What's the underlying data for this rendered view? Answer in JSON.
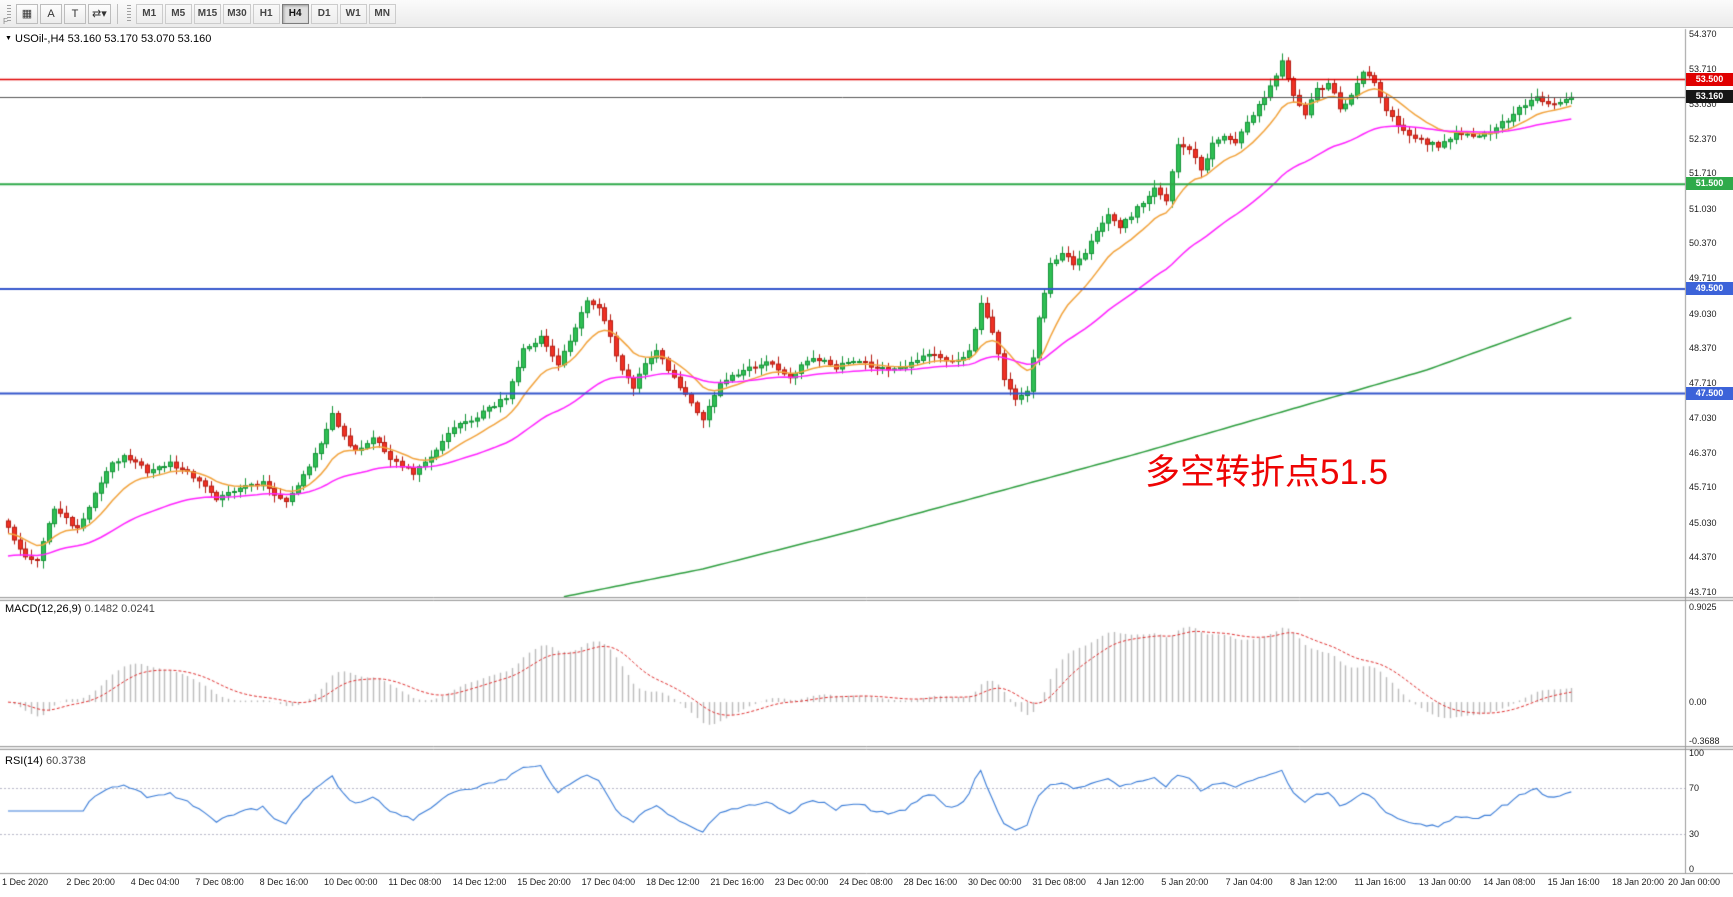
{
  "app": {
    "toolbar": {
      "f_label": "F",
      "left_buttons": [
        {
          "name": "chart-windows-icon",
          "glyph": "▦"
        },
        {
          "name": "annotate-a-button",
          "glyph": "A"
        },
        {
          "name": "text-tool-button",
          "glyph": "T"
        },
        {
          "name": "symbol-cycle-icon",
          "glyph": "⇄",
          "caret": "▾"
        }
      ],
      "timeframes": [
        "M1",
        "M5",
        "M15",
        "M30",
        "H1",
        "H4",
        "D1",
        "W1",
        "MN"
      ],
      "active_timeframe": "H4"
    },
    "symbol_header": {
      "expand_icon": "▼",
      "symbol": "USOil-,H4",
      "ohlc": "53.160 53.170 53.070 53.160"
    },
    "annotation": {
      "text": "多空转折点51.5"
    }
  },
  "chart_data": {
    "type": "candlestick",
    "symbol": "USOil",
    "timeframe": "H4",
    "ohlc_display": {
      "open": "53.160",
      "high": "53.170",
      "low": "53.070",
      "close": "53.160"
    },
    "price_range": [
      43.71,
      54.37
    ],
    "price_axis_labels": [
      "54.370",
      "53.710",
      "53.030",
      "52.370",
      "51.710",
      "51.030",
      "50.370",
      "49.710",
      "49.030",
      "48.370",
      "47.710",
      "47.030",
      "46.370",
      "45.710",
      "45.030",
      "44.370",
      "43.710"
    ],
    "bars": 271,
    "wiggle": 0.1,
    "close_waypoints": [
      [
        0,
        44.9
      ],
      [
        3,
        44.42
      ],
      [
        5,
        44.28
      ],
      [
        8,
        45.32
      ],
      [
        12,
        44.92
      ],
      [
        17,
        46.02
      ],
      [
        20,
        46.35
      ],
      [
        24,
        46.0
      ],
      [
        28,
        46.18
      ],
      [
        32,
        45.9
      ],
      [
        36,
        45.52
      ],
      [
        40,
        45.7
      ],
      [
        44,
        45.78
      ],
      [
        48,
        45.42
      ],
      [
        52,
        46.08
      ],
      [
        54,
        46.55
      ],
      [
        56,
        47.12
      ],
      [
        58,
        46.72
      ],
      [
        60,
        46.38
      ],
      [
        63,
        46.65
      ],
      [
        66,
        46.28
      ],
      [
        70,
        45.98
      ],
      [
        74,
        46.42
      ],
      [
        77,
        46.88
      ],
      [
        82,
        47.12
      ],
      [
        86,
        47.42
      ],
      [
        89,
        48.35
      ],
      [
        92,
        48.55
      ],
      [
        95,
        48.05
      ],
      [
        98,
        48.72
      ],
      [
        100,
        49.28
      ],
      [
        102,
        49.18
      ],
      [
        104,
        48.58
      ],
      [
        106,
        47.92
      ],
      [
        108,
        47.65
      ],
      [
        110,
        48.12
      ],
      [
        112,
        48.3
      ],
      [
        115,
        47.78
      ],
      [
        118,
        47.35
      ],
      [
        120,
        47.02
      ],
      [
        122,
        47.48
      ],
      [
        124,
        47.8
      ],
      [
        127,
        47.95
      ],
      [
        131,
        48.1
      ],
      [
        135,
        47.85
      ],
      [
        139,
        48.18
      ],
      [
        143,
        48.0
      ],
      [
        147,
        48.15
      ],
      [
        151,
        47.95
      ],
      [
        155,
        48.05
      ],
      [
        159,
        48.28
      ],
      [
        163,
        48.12
      ],
      [
        166,
        48.3
      ],
      [
        168,
        49.18
      ],
      [
        170,
        48.72
      ],
      [
        172,
        47.78
      ],
      [
        174,
        47.42
      ],
      [
        176,
        47.55
      ],
      [
        178,
        48.9
      ],
      [
        180,
        49.95
      ],
      [
        182,
        50.22
      ],
      [
        184,
        49.95
      ],
      [
        186,
        50.15
      ],
      [
        188,
        50.6
      ],
      [
        190,
        50.95
      ],
      [
        192,
        50.7
      ],
      [
        194,
        50.88
      ],
      [
        196,
        51.18
      ],
      [
        198,
        51.38
      ],
      [
        200,
        51.15
      ],
      [
        202,
        52.3
      ],
      [
        204,
        52.18
      ],
      [
        206,
        51.78
      ],
      [
        208,
        52.28
      ],
      [
        210,
        52.45
      ],
      [
        212,
        52.3
      ],
      [
        214,
        52.65
      ],
      [
        216,
        53.0
      ],
      [
        218,
        53.4
      ],
      [
        220,
        53.82
      ],
      [
        222,
        53.15
      ],
      [
        224,
        52.85
      ],
      [
        226,
        53.28
      ],
      [
        228,
        53.45
      ],
      [
        230,
        52.95
      ],
      [
        232,
        53.18
      ],
      [
        234,
        53.68
      ],
      [
        236,
        53.42
      ],
      [
        238,
        52.95
      ],
      [
        240,
        52.58
      ],
      [
        243,
        52.35
      ],
      [
        247,
        52.22
      ],
      [
        250,
        52.48
      ],
      [
        253,
        52.38
      ],
      [
        257,
        52.58
      ],
      [
        261,
        52.92
      ],
      [
        264,
        53.12
      ],
      [
        267,
        53.02
      ],
      [
        270,
        53.16
      ]
    ],
    "candle_colors": {
      "bull": "#2fbf54",
      "bull_border": "#149437",
      "bear": "#ef3124",
      "bear_border": "#b61c12"
    },
    "hlines": [
      {
        "price": 53.5,
        "color": "#e00000",
        "width": 1.4,
        "badge": "53.500",
        "badge_color": "#e00000"
      },
      {
        "price": 51.5,
        "color": "#2faa4a",
        "width": 1.8,
        "badge": "51.500",
        "badge_color": "#2faa4a"
      },
      {
        "price": 49.5,
        "color": "#3355cc",
        "width": 2,
        "badge": "49.500",
        "badge_color": "#3c63d9"
      },
      {
        "price": 47.5,
        "color": "#3355cc",
        "width": 2,
        "badge": "47.500",
        "badge_color": "#3c63d9"
      }
    ],
    "current_price": {
      "value": 53.16,
      "badge": "53.160",
      "badge_color": "#161616",
      "line_color": "#555555"
    },
    "moving_averages": [
      {
        "name": "ma-fast",
        "type": "ema",
        "period": 12,
        "color": "#f2a33c",
        "seed_offset": -0.12
      },
      {
        "name": "ma-slow",
        "type": "ema",
        "period": 40,
        "color": "#ff22ff",
        "seed_offset": -0.55
      },
      {
        "name": "ma-long",
        "type": "waypoints",
        "color": "#2e9e3f",
        "waypoints": [
          [
            96,
            43.62
          ],
          [
            120,
            44.15
          ],
          [
            145,
            44.85
          ],
          [
            170,
            45.6
          ],
          [
            195,
            46.35
          ],
          [
            220,
            47.15
          ],
          [
            245,
            47.95
          ],
          [
            270,
            48.95
          ]
        ]
      }
    ],
    "macd": {
      "label": "MACD(12,26,9)",
      "values_text": "0.1482 0.0241",
      "fast": 12,
      "slow": 26,
      "signal": 9,
      "range": [
        -0.3688,
        0.9025
      ],
      "axis_labels": [
        "0.9025",
        "0.00",
        "-0.3688"
      ],
      "axis_values": [
        0.9025,
        0,
        -0.3688
      ],
      "histogram_color": "#bcbcbc",
      "signal_color": "#e03030"
    },
    "rsi": {
      "label": "RSI(14)",
      "value_text": "60.3738",
      "period": 14,
      "range": [
        0,
        100
      ],
      "levels": [
        70,
        30
      ],
      "axis_labels": [
        "100",
        "70",
        "30",
        "0"
      ],
      "axis_values": [
        100,
        70,
        30,
        0
      ],
      "line_color": "#3b7dd8",
      "level_color": "#b9b9c9"
    },
    "time_labels": [
      "1 Dec 2020",
      "2 Dec 20:00",
      "4 Dec 04:00",
      "7 Dec 08:00",
      "8 Dec 16:00",
      "10 Dec 00:00",
      "11 Dec 08:00",
      "14 Dec 12:00",
      "15 Dec 20:00",
      "17 Dec 04:00",
      "18 Dec 12:00",
      "21 Dec 16:00",
      "23 Dec 00:00",
      "24 Dec 08:00",
      "28 Dec 16:00",
      "30 Dec 00:00",
      "31 Dec 08:00",
      "4 Jan 12:00",
      "5 Jan 20:00",
      "7 Jan 04:00",
      "8 Jan 12:00",
      "11 Jan 16:00",
      "13 Jan 00:00",
      "14 Jan 08:00",
      "15 Jan 16:00",
      "18 Jan 20:00",
      "20 Jan 00:00"
    ]
  }
}
